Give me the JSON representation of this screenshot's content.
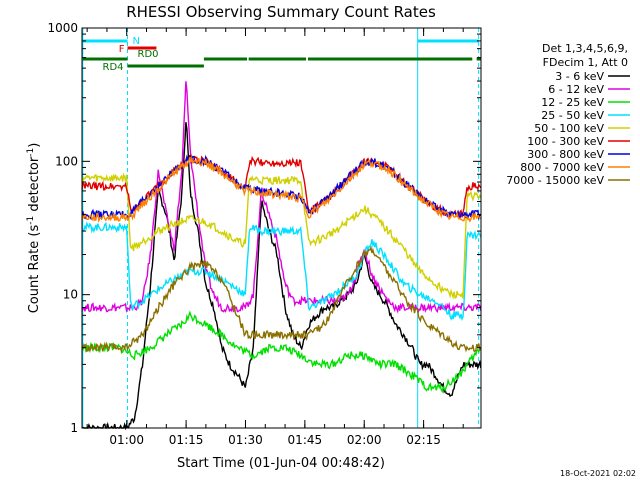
{
  "chart_data": {
    "type": "line",
    "title": "RHESSI Observing Summary Count Rates",
    "xlabel": "Start Time (01-Jun-04 00:48:42)",
    "ylabel": "Count Rate (s",
    "ylabel_sup1": "-1",
    "ylabel_mid": " detector",
    "ylabel_sup2": "-1",
    "ylabel_end": ")",
    "yscale": "log",
    "ylim": [
      1,
      1000
    ],
    "xlim_minutes": [
      48.7,
      149.5
    ],
    "x_ticks": [
      {
        "minute": 60,
        "label": "01:00"
      },
      {
        "minute": 75,
        "label": "01:15"
      },
      {
        "minute": 90,
        "label": "01:30"
      },
      {
        "minute": 105,
        "label": "01:45"
      },
      {
        "minute": 120,
        "label": "02:00"
      },
      {
        "minute": 135,
        "label": "02:15"
      }
    ],
    "y_ticks": [
      {
        "value": 1,
        "label": "1"
      },
      {
        "value": 10,
        "label": "10"
      },
      {
        "value": 100,
        "label": "100"
      },
      {
        "value": 1000,
        "label": "1000"
      }
    ],
    "legend_header": [
      "Det 1,3,4,5,6,9,",
      "FDecim 1, Att 0"
    ],
    "series": [
      {
        "name": "3 - 6 keV",
        "color": "#000000",
        "x": [
          48.7,
          58,
          60,
          62,
          64,
          66,
          68,
          70,
          72,
          74,
          75,
          76,
          78,
          80,
          82,
          84,
          86,
          88,
          90,
          92,
          94,
          96,
          98,
          100,
          102,
          104,
          106,
          108,
          110,
          112,
          114,
          116,
          118,
          120,
          122,
          124,
          126,
          128,
          130,
          132,
          134,
          136,
          138,
          140,
          142,
          145,
          149.5
        ],
        "values": [
          1,
          1,
          1,
          1.2,
          3,
          12,
          60,
          40,
          18,
          60,
          220,
          60,
          30,
          12,
          8,
          4,
          3,
          2.5,
          2,
          4,
          50,
          30,
          20,
          8,
          5,
          4,
          6,
          7,
          8,
          8,
          9,
          10,
          12,
          20,
          12,
          10,
          8,
          6,
          5,
          4,
          3,
          3,
          2.5,
          2,
          1.8,
          3,
          3
        ]
      },
      {
        "name": "6 - 12 keV",
        "color": "#e000e0",
        "x": [
          48.7,
          58,
          60,
          62,
          64,
          66,
          68,
          70,
          72,
          74,
          75,
          76,
          78,
          80,
          82,
          84,
          86,
          88,
          90,
          92,
          94,
          96,
          98,
          100,
          102,
          104,
          106,
          108,
          110,
          112,
          114,
          116,
          118,
          120,
          122,
          124,
          126,
          128,
          130,
          132,
          134,
          136,
          138,
          140,
          142,
          145,
          149.5
        ],
        "values": [
          8,
          8,
          8,
          8,
          9,
          20,
          85,
          40,
          22,
          90,
          420,
          120,
          40,
          15,
          10,
          8,
          8,
          8,
          8,
          10,
          60,
          40,
          25,
          12,
          9,
          9,
          9,
          9,
          9,
          9,
          9,
          10,
          14,
          22,
          14,
          11,
          9,
          8,
          8,
          8,
          8,
          8,
          8,
          8,
          8,
          8,
          8
        ]
      },
      {
        "name": "12 - 25 keV",
        "color": "#00e000",
        "x": [
          48.7,
          58,
          62,
          66,
          70,
          74,
          76,
          80,
          84,
          88,
          92,
          96,
          100,
          104,
          108,
          112,
          116,
          120,
          124,
          128,
          132,
          136,
          140,
          144,
          149.5
        ],
        "values": [
          4,
          4,
          3.5,
          4,
          5,
          6,
          7,
          6,
          5,
          4,
          3.5,
          4,
          4,
          3.5,
          3,
          3,
          3.5,
          3.5,
          3,
          3,
          2.5,
          2,
          2,
          2.5,
          4
        ]
      },
      {
        "name": "25 - 50 keV",
        "color": "#00e0ff",
        "x": [
          48.7,
          60,
          61,
          64,
          68,
          72,
          76,
          80,
          84,
          88,
          90,
          91,
          94,
          98,
          102,
          104,
          106,
          110,
          114,
          118,
          120,
          122,
          126,
          130,
          132,
          134,
          138,
          140,
          142,
          145,
          146,
          149.5
        ],
        "values": [
          32,
          32,
          8,
          9,
          11,
          13,
          15,
          15,
          13,
          11,
          10,
          32,
          30,
          30,
          30,
          30,
          8,
          9,
          11,
          14,
          20,
          25,
          18,
          12,
          11,
          10,
          9,
          8,
          7,
          7,
          28,
          28
        ]
      },
      {
        "name": "50 - 100 keV",
        "color": "#d0d000",
        "x": [
          48.7,
          60,
          61,
          64,
          68,
          72,
          76,
          80,
          84,
          88,
          90,
          91,
          94,
          98,
          102,
          104,
          106,
          110,
          114,
          118,
          120,
          122,
          126,
          130,
          132,
          134,
          138,
          140,
          142,
          145,
          146,
          149.5
        ],
        "values": [
          75,
          75,
          22,
          25,
          30,
          34,
          37,
          35,
          30,
          25,
          24,
          75,
          72,
          72,
          72,
          72,
          24,
          27,
          32,
          40,
          44,
          40,
          30,
          22,
          18,
          15,
          12,
          11,
          10,
          10,
          55,
          55
        ]
      },
      {
        "name": "100 - 300 keV",
        "color": "#e00000",
        "x": [
          48.7,
          60,
          61,
          64,
          68,
          72,
          76,
          80,
          84,
          88,
          90,
          91,
          94,
          98,
          102,
          104,
          106,
          110,
          114,
          118,
          120,
          122,
          126,
          130,
          132,
          134,
          138,
          140,
          142,
          145,
          146,
          149.5
        ],
        "values": [
          65,
          65,
          42,
          50,
          65,
          85,
          105,
          100,
          85,
          68,
          62,
          100,
          98,
          98,
          98,
          98,
          42,
          50,
          65,
          85,
          98,
          100,
          90,
          70,
          62,
          55,
          45,
          42,
          40,
          40,
          65,
          65
        ]
      },
      {
        "name": "300 - 800 keV",
        "color": "#0000e0",
        "x": [
          48.7,
          60,
          61,
          64,
          68,
          72,
          76,
          80,
          84,
          88,
          90,
          91,
          94,
          98,
          102,
          104,
          106,
          110,
          114,
          118,
          120,
          122,
          126,
          130,
          132,
          134,
          138,
          140,
          142,
          145,
          146,
          149.5
        ],
        "values": [
          40,
          40,
          40,
          50,
          65,
          85,
          105,
          100,
          85,
          68,
          62,
          62,
          60,
          58,
          56,
          55,
          42,
          50,
          66,
          86,
          98,
          100,
          90,
          70,
          62,
          55,
          45,
          42,
          40,
          40,
          40,
          40
        ]
      },
      {
        "name": "800 - 7000 keV",
        "color": "#ff8000",
        "x": [
          48.7,
          60,
          61,
          64,
          68,
          72,
          76,
          80,
          84,
          88,
          90,
          91,
          94,
          98,
          102,
          104,
          106,
          110,
          114,
          118,
          120,
          122,
          126,
          130,
          132,
          134,
          138,
          140,
          142,
          145,
          146,
          149.5
        ],
        "values": [
          38,
          38,
          38,
          48,
          62,
          82,
          102,
          98,
          82,
          66,
          60,
          60,
          58,
          56,
          54,
          53,
          40,
          48,
          63,
          83,
          95,
          98,
          88,
          68,
          60,
          53,
          44,
          40,
          38,
          38,
          38,
          38
        ]
      },
      {
        "name": "7000 - 15000 keV",
        "color": "#8b7000",
        "x": [
          48.7,
          60,
          62,
          64,
          68,
          72,
          76,
          80,
          84,
          88,
          90,
          94,
          98,
          102,
          104,
          106,
          110,
          114,
          118,
          120,
          122,
          124,
          128,
          132,
          136,
          140,
          144,
          149.5
        ],
        "values": [
          4,
          4,
          4.5,
          5,
          8,
          12,
          16,
          17,
          13,
          7,
          5,
          5,
          5,
          5,
          5,
          5,
          6,
          10,
          16,
          20,
          22,
          18,
          12,
          8,
          6,
          5,
          4,
          4
        ]
      }
    ],
    "vertical_lines": [
      {
        "minute": 48.9,
        "style": "solid"
      },
      {
        "minute": 60.2,
        "style": "dashed"
      },
      {
        "minute": 133.5,
        "style": "solid"
      },
      {
        "minute": 148.9,
        "style": "dashed"
      }
    ],
    "state_bars": [
      {
        "label": "N",
        "color": "#00e0ff",
        "row": 0,
        "segments": [
          [
            48.9,
            60.2
          ],
          [
            133.5,
            148.9
          ]
        ]
      },
      {
        "label": "F",
        "color": "#e00000",
        "row": 1,
        "segments": [
          [
            60.2,
            67.5
          ]
        ]
      },
      {
        "label": "RD0",
        "color": "#007000",
        "row": 2,
        "segments": [
          [
            48.9,
            60.2
          ],
          [
            79.5,
            90.4
          ],
          [
            90.8,
            105.3
          ],
          [
            105.8,
            147.3
          ],
          [
            148.4,
            149.4
          ]
        ]
      },
      {
        "label": "RD4",
        "color": "#007000",
        "row": 3,
        "segments": [
          [
            60.2,
            79.5
          ]
        ]
      }
    ],
    "footer_date": "18-Oct-2021 02:02"
  }
}
